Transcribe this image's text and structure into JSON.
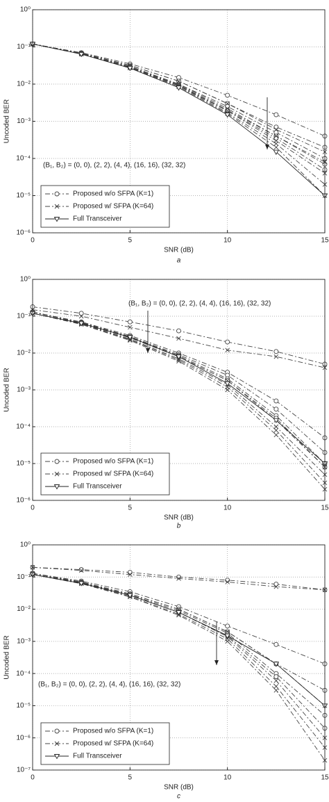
{
  "chart_data": [
    {
      "type": "line",
      "caption": "a",
      "xlabel": "SNR (dB)",
      "ylabel": "Uncoded BER",
      "log_y": true,
      "grid": true,
      "legend": "lower left",
      "annotation": "(B₁, B₂) = (0, 0), (2, 2), (4, 4), (16, 16), (32, 32)",
      "x": [
        0,
        2.5,
        5,
        7.5,
        10,
        12.5,
        15
      ],
      "xlim": [
        0,
        15
      ],
      "xticks": [
        0,
        5,
        10,
        15
      ],
      "ylim": [
        1e-06,
        1
      ],
      "yticks": [
        {
          "value": 1e-06,
          "label": "10⁻⁶"
        },
        {
          "value": 1e-05,
          "label": "10⁻⁵"
        },
        {
          "value": 0.0001,
          "label": "10⁻⁴"
        },
        {
          "value": 0.001,
          "label": "10⁻³"
        },
        {
          "value": 0.01,
          "label": "10⁻²"
        },
        {
          "value": 0.1,
          "label": "10⁻¹"
        },
        {
          "value": 1,
          "label": "10⁰"
        }
      ],
      "series": [
        {
          "name": "Proposed w/o SFPA (K=1)",
          "color": "#444",
          "marker": "circle",
          "dash": "dashdot",
          "curves": [
            [
              0.12,
              0.07,
              0.035,
              0.015,
              0.005,
              0.0015,
              0.0004
            ],
            [
              0.12,
              0.068,
              0.032,
              0.012,
              0.003,
              0.0007,
              0.0002
            ],
            [
              0.12,
              0.067,
              0.03,
              0.01,
              0.0025,
              0.0005,
              0.0001
            ],
            [
              0.12,
              0.066,
              0.029,
              0.0095,
              0.002,
              0.0004,
              7e-05
            ],
            [
              0.12,
              0.065,
              0.028,
              0.009,
              0.0019,
              0.00035,
              5e-05
            ]
          ]
        },
        {
          "name": "Proposed w/ SFPA (K=64)",
          "color": "#444",
          "marker": "x",
          "dash": "dashdot",
          "curves": [
            [
              0.12,
              0.068,
              0.032,
              0.012,
              0.003,
              0.0006,
              0.00015
            ],
            [
              0.12,
              0.066,
              0.03,
              0.01,
              0.0022,
              0.0004,
              8e-05
            ],
            [
              0.12,
              0.065,
              0.029,
              0.0092,
              0.0019,
              0.0003,
              4e-05
            ],
            [
              0.12,
              0.065,
              0.028,
              0.009,
              0.0017,
              0.00025,
              2e-05
            ],
            [
              0.12,
              0.064,
              0.027,
              0.0085,
              0.0016,
              0.0002,
              1e-05
            ]
          ]
        },
        {
          "name": "Full Transceiver",
          "color": "#222",
          "marker": "triangle",
          "dash": "solid",
          "curves": [
            [
              0.12,
              0.064,
              0.027,
              0.008,
              0.0015,
              0.00015,
              1e-05
            ]
          ]
        }
      ]
    },
    {
      "type": "line",
      "caption": "b",
      "xlabel": "SNR (dB)",
      "ylabel": "Uncoded BER",
      "log_y": true,
      "grid": true,
      "legend": "lower left",
      "annotation": "(B₁, B₂) = (0, 0), (2, 2), (4, 4), (16, 16), (32, 32)",
      "x": [
        0,
        2.5,
        5,
        7.5,
        10,
        12.5,
        15
      ],
      "xlim": [
        0,
        15
      ],
      "xticks": [
        0,
        5,
        10,
        15
      ],
      "ylim": [
        1e-06,
        1
      ],
      "yticks": [
        {
          "value": 1e-06,
          "label": "10⁻⁶"
        },
        {
          "value": 1e-05,
          "label": "10⁻⁵"
        },
        {
          "value": 0.0001,
          "label": "10⁻⁴"
        },
        {
          "value": 0.001,
          "label": "10⁻³"
        },
        {
          "value": 0.01,
          "label": "10⁻²"
        },
        {
          "value": 0.1,
          "label": "10⁻¹"
        },
        {
          "value": 1,
          "label": "10⁰"
        }
      ],
      "series": [
        {
          "name": "Proposed w/o SFPA (K=1)",
          "color": "#444",
          "marker": "circle",
          "dash": "dashdot",
          "curves": [
            [
              0.18,
              0.12,
              0.07,
              0.04,
              0.02,
              0.011,
              0.005
            ],
            [
              0.13,
              0.07,
              0.03,
              0.01,
              0.003,
              0.0005,
              5e-05
            ],
            [
              0.13,
              0.068,
              0.028,
              0.009,
              0.0025,
              0.0003,
              2e-05
            ],
            [
              0.13,
              0.067,
              0.027,
              0.0085,
              0.002,
              0.0002,
              1e-05
            ],
            [
              0.13,
              0.066,
              0.026,
              0.008,
              0.0018,
              0.00017,
              8e-06
            ]
          ]
        },
        {
          "name": "Proposed w/ SFPA (K=64)",
          "color": "#444",
          "marker": "x",
          "dash": "dashdot",
          "curves": [
            [
              0.15,
              0.1,
              0.05,
              0.025,
              0.012,
              0.008,
              0.004
            ],
            [
              0.13,
              0.066,
              0.026,
              0.008,
              0.0018,
              0.00015,
              8e-06
            ],
            [
              0.12,
              0.064,
              0.024,
              0.007,
              0.0014,
              0.0001,
              5e-06
            ],
            [
              0.12,
              0.062,
              0.023,
              0.0065,
              0.0012,
              8e-05,
              3e-06
            ],
            [
              0.12,
              0.06,
              0.022,
              0.006,
              0.001,
              6e-05,
              2e-06
            ]
          ]
        },
        {
          "name": "Full Transceiver",
          "color": "#222",
          "marker": "triangle",
          "dash": "solid",
          "curves": [
            [
              0.12,
              0.064,
              0.027,
              0.008,
              0.0015,
              0.00015,
              1e-05
            ]
          ]
        }
      ]
    },
    {
      "type": "line",
      "caption": "c",
      "xlabel": "SNR (dB)",
      "ylabel": "Uncoded BER",
      "log_y": true,
      "grid": true,
      "legend": "lower left",
      "annotation": "(B₁, B₂) = (0, 0), (2, 2), (4, 4), (16, 16), (32, 32)",
      "x": [
        0,
        2.5,
        5,
        7.5,
        10,
        12.5,
        15
      ],
      "xlim": [
        0,
        15
      ],
      "xticks": [
        0,
        5,
        10,
        15
      ],
      "ylim": [
        1e-07,
        1
      ],
      "yticks": [
        {
          "value": 1e-07,
          "label": "10⁻⁷"
        },
        {
          "value": 1e-06,
          "label": "10⁻⁶"
        },
        {
          "value": 1e-05,
          "label": "10⁻⁵"
        },
        {
          "value": 0.0001,
          "label": "10⁻⁴"
        },
        {
          "value": 0.001,
          "label": "10⁻³"
        },
        {
          "value": 0.01,
          "label": "10⁻²"
        },
        {
          "value": 0.1,
          "label": "10⁻¹"
        },
        {
          "value": 1,
          "label": "10⁰"
        }
      ],
      "series": [
        {
          "name": "Proposed w/o SFPA (K=1)",
          "color": "#444",
          "marker": "circle",
          "dash": "dashdot",
          "curves": [
            [
              0.2,
              0.17,
              0.14,
              0.1,
              0.08,
              0.06,
              0.04
            ],
            [
              0.13,
              0.075,
              0.035,
              0.012,
              0.003,
              0.0008,
              0.0002
            ],
            [
              0.13,
              0.07,
              0.03,
              0.01,
              0.002,
              0.0002,
              3e-05
            ],
            [
              0.13,
              0.068,
              0.028,
              0.009,
              0.0018,
              0.0001,
              5e-06
            ],
            [
              0.13,
              0.066,
              0.027,
              0.008,
              0.0015,
              8e-05,
              2e-06
            ]
          ]
        },
        {
          "name": "Proposed w/ SFPA (K=64)",
          "color": "#444",
          "marker": "x",
          "dash": "dashdot",
          "curves": [
            [
              0.2,
              0.16,
              0.12,
              0.09,
              0.07,
              0.05,
              0.04
            ],
            [
              0.13,
              0.07,
              0.03,
              0.01,
              0.002,
              0.0002,
              1e-05
            ],
            [
              0.12,
              0.066,
              0.027,
              0.008,
              0.0014,
              6e-05,
              1e-06
            ],
            [
              0.12,
              0.064,
              0.025,
              0.007,
              0.0012,
              4e-05,
              5e-07
            ],
            [
              0.12,
              0.062,
              0.024,
              0.0065,
              0.001,
              3e-05,
              2e-07
            ]
          ]
        },
        {
          "name": "Full Transceiver",
          "color": "#222",
          "marker": "triangle",
          "dash": "solid",
          "curves": [
            [
              0.12,
              0.064,
              0.027,
              0.008,
              0.0015,
              0.0002,
              1e-05
            ]
          ]
        }
      ]
    }
  ]
}
